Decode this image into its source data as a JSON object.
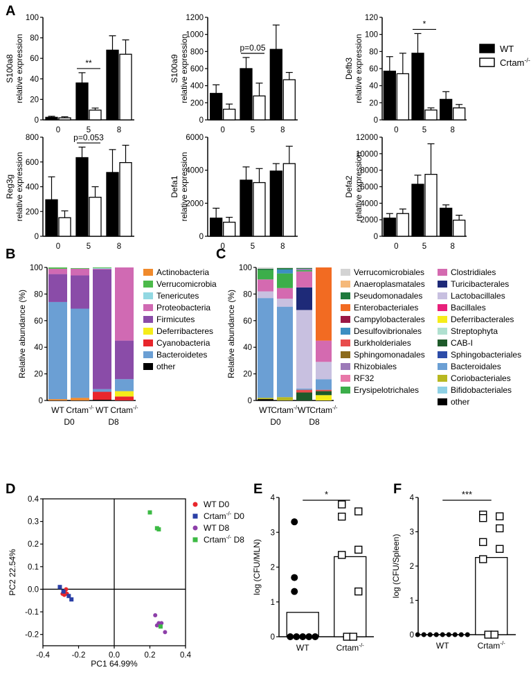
{
  "panel_letters": [
    "A",
    "B",
    "C",
    "D",
    "E",
    "F"
  ],
  "legend_A": {
    "wt": "WT",
    "ko": "Crtam",
    "ko_sup": "-/-"
  },
  "chart_data": [
    {
      "id": "a1",
      "type": "bar",
      "ylabel": "S100a8",
      "ylabel2": "relative expression",
      "categories": [
        "0",
        "5",
        "8"
      ],
      "ylim": [
        0,
        100
      ],
      "yticks": [
        0,
        20,
        40,
        60,
        80,
        100
      ],
      "series": [
        {
          "name": "WT",
          "values": [
            2.5,
            36,
            68
          ],
          "errors": [
            1,
            10,
            14
          ]
        },
        {
          "name": "Crtam-/-",
          "values": [
            2,
            9.5,
            64
          ],
          "errors": [
            1,
            2,
            14
          ]
        }
      ],
      "annotation": {
        "text": "**",
        "category": 1
      }
    },
    {
      "id": "a2",
      "type": "bar",
      "ylabel": "S100a9",
      "ylabel2": "relative expression",
      "categories": [
        "0",
        "5",
        "8"
      ],
      "ylim": [
        0,
        1200
      ],
      "yticks": [
        0,
        200,
        400,
        600,
        800,
        1000,
        1200
      ],
      "series": [
        {
          "name": "WT",
          "values": [
            310,
            600,
            825
          ],
          "errors": [
            100,
            130,
            285
          ]
        },
        {
          "name": "Crtam-/-",
          "values": [
            125,
            280,
            470
          ],
          "errors": [
            60,
            150,
            85
          ]
        }
      ],
      "annotation": {
        "text": "p=0.05",
        "category": 1
      }
    },
    {
      "id": "a3",
      "type": "bar",
      "ylabel": "Defb3",
      "ylabel2": "relative expression",
      "categories": [
        "0",
        "5",
        "8"
      ],
      "ylim": [
        0,
        120
      ],
      "yticks": [
        0,
        20,
        40,
        60,
        80,
        100,
        120
      ],
      "series": [
        {
          "name": "WT",
          "values": [
            57,
            78,
            24
          ],
          "errors": [
            17,
            23,
            9
          ]
        },
        {
          "name": "Crtam-/-",
          "values": [
            54,
            11.5,
            14
          ],
          "errors": [
            24,
            2.5,
            4
          ]
        }
      ],
      "annotation": {
        "text": "*",
        "category": 1
      }
    },
    {
      "id": "a4",
      "type": "bar",
      "ylabel": "Reg3g",
      "ylabel2": "relative expression",
      "categories": [
        "0",
        "5",
        "8"
      ],
      "ylim": [
        0,
        800
      ],
      "yticks": [
        0,
        200,
        400,
        600,
        800
      ],
      "series": [
        {
          "name": "WT",
          "values": [
            295,
            635,
            515
          ],
          "errors": [
            185,
            85,
            185
          ]
        },
        {
          "name": "Crtam-/-",
          "values": [
            150,
            315,
            595
          ],
          "errors": [
            55,
            85,
            140
          ]
        }
      ],
      "annotation": {
        "text": "p=0.053",
        "category": 1
      }
    },
    {
      "id": "a5",
      "type": "bar",
      "ylabel": "Defa1",
      "ylabel2": "relative expression",
      "categories": [
        "0",
        "5",
        "8"
      ],
      "ylim": [
        0,
        6000
      ],
      "yticks": [
        0,
        2000,
        4000,
        6000
      ],
      "series": [
        {
          "name": "WT",
          "values": [
            1100,
            3400,
            3950
          ],
          "errors": [
            600,
            800,
            450
          ]
        },
        {
          "name": "Crtam-/-",
          "values": [
            850,
            3250,
            4400
          ],
          "errors": [
            300,
            850,
            1050
          ]
        }
      ]
    },
    {
      "id": "a6",
      "type": "bar",
      "ylabel": "Defa2",
      "ylabel2": "relative expression",
      "categories": [
        "0",
        "5",
        "8"
      ],
      "ylim": [
        0,
        12000
      ],
      "yticks": [
        0,
        2000,
        4000,
        6000,
        8000,
        10000,
        12000
      ],
      "series": [
        {
          "name": "WT",
          "values": [
            2200,
            6300,
            3400
          ],
          "errors": [
            550,
            1100,
            400
          ]
        },
        {
          "name": "Crtam-/-",
          "values": [
            2750,
            7500,
            1950
          ],
          "errors": [
            550,
            3700,
            600
          ]
        }
      ]
    },
    {
      "id": "b",
      "type": "bar",
      "stacked": true,
      "ylabel": "Relative abundance (%)",
      "ylim": [
        0,
        100
      ],
      "yticks": [
        0,
        20,
        40,
        60,
        80,
        100
      ],
      "categories": [
        "WT",
        "Crtam",
        "WT",
        "Crtam"
      ],
      "category_sup": "-/-",
      "groups": [
        "D0",
        "D8"
      ],
      "legend": [
        "Actinobacteria",
        "Verrucomicrobia",
        "Tenericutes",
        "Proteobacteria",
        "Firmicutes",
        "Deferribacteres",
        "Cyanobacteria",
        "Bacteroidetes",
        "other"
      ],
      "colors": [
        "#f08a2c",
        "#4cba4a",
        "#92d8e2",
        "#d06ab3",
        "#8a4ca8",
        "#f5ec1a",
        "#e8262c",
        "#6b9fd4",
        "#000000"
      ],
      "stack_order": [
        "other",
        "Actinobacteria",
        "Cyanobacteria",
        "Deferribacteres",
        "Bacteroidetes",
        "Firmicutes",
        "Proteobacteria",
        "Tenericutes",
        "Verrucomicrobia"
      ],
      "series": {
        "Actinobacteria": [
          1,
          2,
          0,
          0
        ],
        "Verrucomicrobia": [
          1,
          0.5,
          0.5,
          0
        ],
        "Tenericutes": [
          0,
          0,
          0.5,
          0
        ],
        "Proteobacteria": [
          4,
          5,
          0.5,
          55
        ],
        "Firmicutes": [
          21,
          25,
          90,
          29
        ],
        "Deferribacteres": [
          0,
          0,
          0,
          4
        ],
        "Cyanobacteria": [
          0,
          0,
          6,
          3
        ],
        "Bacteroidetes": [
          73,
          67,
          2,
          9
        ],
        "other": [
          0,
          0,
          0.5,
          0
        ]
      }
    },
    {
      "id": "c",
      "type": "bar",
      "stacked": true,
      "ylabel": "Relative abundance (%)",
      "ylim": [
        0,
        100
      ],
      "yticks": [
        0,
        20,
        40,
        60,
        80,
        100
      ],
      "categories": [
        "WT",
        "Crtam",
        "WT",
        "Crtam"
      ],
      "category_sup": "-/-",
      "groups": [
        "D0",
        "D8"
      ],
      "legend": [
        "Verrucomicrobiales",
        "Anaeroplasmatales",
        "Pseudomonadales",
        "Enterobacteriales",
        "Campylobacterales",
        "Desulfovibrionales",
        "Burkholderiales",
        "Sphingomonadales",
        "Rhizobiales",
        "RF32",
        "Erysipelotrichales",
        "Clostridiales",
        "Turicibacterales",
        "Lactobacillales",
        "Bacillales",
        "Deferribacterales",
        "Streptophyta",
        "CAB-I",
        "Sphingobacteriales",
        "Bacteroidales",
        "Coriobacteriales",
        "Bifidobacteriales",
        "other"
      ],
      "colors": [
        "#d3d3d3",
        "#f5b97a",
        "#1f7a3c",
        "#f26b22",
        "#9b1845",
        "#3c8fc2",
        "#e84c4c",
        "#8b6a1c",
        "#9c7ab8",
        "#e878a8",
        "#3cae4a",
        "#d46ab0",
        "#1e2a78",
        "#c8c0e0",
        "#e8207a",
        "#f6ec1a",
        "#b0e0d0",
        "#1e5a2a",
        "#2c4ca8",
        "#6b9fd4",
        "#b8b820",
        "#8ed0e4",
        "#000000"
      ],
      "stack_order": [
        "other",
        "Coriobacteriales",
        "Deferribacterales",
        "CAB-I",
        "Burkholderiales",
        "Bacteroidales",
        "Lactobacillales",
        "Turicibacterales",
        "Clostridiales",
        "Erysipelotrichales",
        "RF32",
        "Rhizobiales",
        "Enterobacteriales",
        "Desulfovibrionales",
        "Pseudomonadales",
        "Verrucomicrobiales"
      ],
      "series": {
        "Verrucomicrobiales": [
          1,
          0.5,
          0.5,
          0
        ],
        "Anaeroplasmatales": [
          0,
          0,
          0,
          0
        ],
        "Pseudomonadales": [
          1,
          1,
          0.5,
          0
        ],
        "Enterobacteriales": [
          0,
          0,
          0,
          55
        ],
        "Campylobacterales": [
          0,
          0,
          0,
          0
        ],
        "Desulfovibrionales": [
          0,
          3,
          0,
          0
        ],
        "Burkholderiales": [
          0,
          0,
          2,
          1
        ],
        "Sphingomonadales": [
          0,
          0,
          0,
          0
        ],
        "Rhizobiales": [
          0,
          0,
          1,
          0
        ],
        "RF32": [
          0,
          0,
          0,
          0
        ],
        "Erysipelotrichales": [
          7,
          11,
          1,
          0
        ],
        "Clostridiales": [
          9,
          8,
          12,
          16
        ],
        "Turicibacterales": [
          0,
          0,
          17,
          0
        ],
        "Lactobacillales": [
          5,
          6,
          59,
          13
        ],
        "Bacillales": [
          0,
          0,
          0,
          0
        ],
        "Deferribacterales": [
          0,
          0,
          0,
          4
        ],
        "Streptophyta": [
          0,
          0,
          0,
          0
        ],
        "CAB-I": [
          0,
          0,
          6,
          3
        ],
        "Sphingobacteriales": [
          0,
          0,
          0,
          0
        ],
        "Bacteroidales": [
          75,
          68,
          1,
          8
        ],
        "Coriobacteriales": [
          1,
          2.5,
          0,
          0
        ],
        "Bifidobacteriales": [
          0,
          0,
          0,
          0
        ],
        "other": [
          1,
          0,
          0,
          0
        ]
      }
    },
    {
      "id": "d",
      "type": "scatter",
      "xlabel": "PC1 64.99%",
      "ylabel": "PC2 22.54%",
      "xlim": [
        -0.4,
        0.4
      ],
      "ylim": [
        -0.25,
        0.4
      ],
      "xticks": [
        -0.4,
        -0.2,
        0.0,
        0.2,
        0.4
      ],
      "xticklabels": [
        "-0.4",
        "-0.2",
        "0.0",
        "0.2",
        "0.4"
      ],
      "yticks": [
        -0.2,
        -0.1,
        0.0,
        0.1,
        0.2,
        0.3,
        0.4
      ],
      "yticklabels": [
        "-0.2",
        "-0.1",
        "0.0",
        "0.1",
        "0.2",
        "0.3",
        "0.4"
      ],
      "series": [
        {
          "name": "WT D0",
          "label": "WT D0",
          "marker": "circle",
          "color": "#e8262c",
          "points": [
            [
              -0.29,
              -0.02
            ],
            [
              -0.28,
              -0.025
            ],
            [
              -0.27,
              0.0
            ],
            [
              -0.265,
              -0.02
            ],
            [
              -0.275,
              -0.015
            ]
          ]
        },
        {
          "name": "Crtam-/- D0",
          "label": "Crtam",
          "sup": "-/-",
          "suffix": " D0",
          "marker": "square",
          "color": "#2a3fa6",
          "points": [
            [
              -0.305,
              0.01
            ],
            [
              -0.285,
              -0.01
            ],
            [
              -0.255,
              -0.03
            ],
            [
              -0.24,
              -0.045
            ]
          ]
        },
        {
          "name": "WT D8",
          "label": "WT D8",
          "marker": "circle",
          "color": "#8d3fa9",
          "points": [
            [
              0.23,
              -0.115
            ],
            [
              0.25,
              -0.15
            ],
            [
              0.265,
              -0.15
            ],
            [
              0.24,
              -0.16
            ],
            [
              0.285,
              -0.19
            ]
          ]
        },
        {
          "name": "Crtam-/- D8",
          "label": "Crtam",
          "sup": "-/-",
          "suffix": " D8",
          "marker": "square",
          "color": "#3cba44",
          "points": [
            [
              0.2,
              0.34
            ],
            [
              0.24,
              0.27
            ],
            [
              0.25,
              0.265
            ],
            [
              0.26,
              -0.165
            ]
          ]
        }
      ]
    },
    {
      "id": "e",
      "type": "bar",
      "ylabel": "log (CFU/MLN)",
      "ylim": [
        0,
        4
      ],
      "yticks": [
        0,
        1,
        2,
        3,
        4
      ],
      "categories": [
        "WT",
        "Crtam"
      ],
      "category_sup": "-/-",
      "values": [
        0.7,
        2.3
      ],
      "points": [
        [
          3.3,
          1.7,
          1.3,
          0,
          0,
          0,
          0,
          0
        ],
        [
          3.8,
          3.6,
          3.45,
          2.5,
          2.35,
          1.3,
          0,
          0
        ]
      ],
      "annotation": {
        "text": "*"
      }
    },
    {
      "id": "f",
      "type": "bar",
      "ylabel": "log (CFU/Spleen)",
      "ylim": [
        0,
        4
      ],
      "yticks": [
        0,
        1,
        2,
        3,
        4
      ],
      "categories": [
        "WT",
        "Crtam"
      ],
      "category_sup": "-/-",
      "values": [
        0,
        2.25
      ],
      "points": [
        [
          0,
          0,
          0,
          0,
          0,
          0,
          0,
          0,
          0
        ],
        [
          3.5,
          3.45,
          3.4,
          3.1,
          2.7,
          2.5,
          2.2,
          0,
          0
        ]
      ],
      "annotation": {
        "text": "***"
      }
    }
  ]
}
